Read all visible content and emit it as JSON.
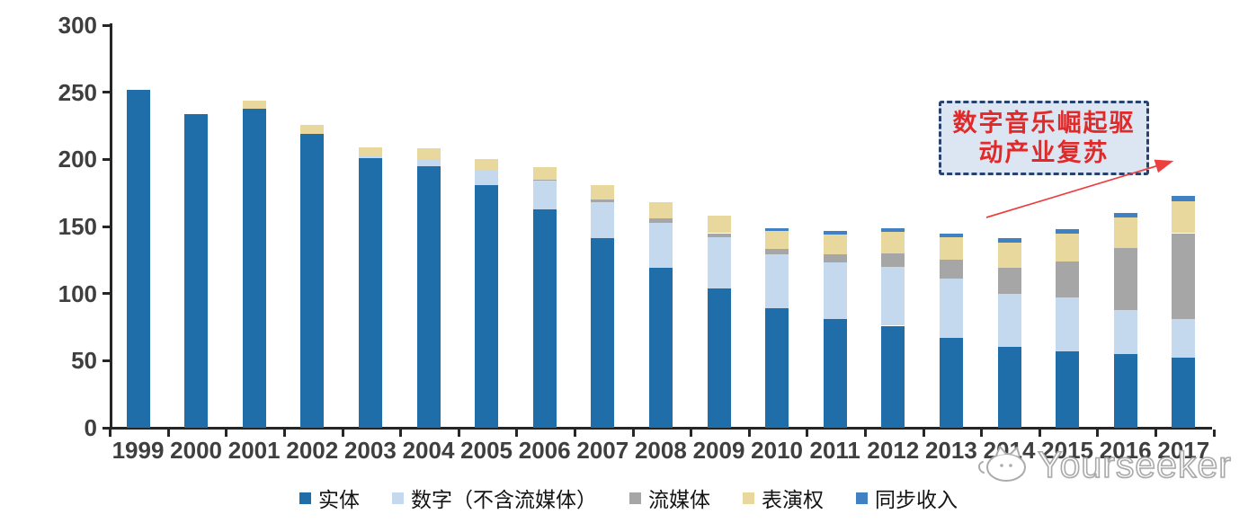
{
  "chart_data": {
    "type": "bar",
    "stacked": true,
    "title": "",
    "xlabel": "",
    "ylabel": "",
    "ylim": [
      0,
      300
    ],
    "y_ticks": [
      0,
      50,
      100,
      150,
      200,
      250,
      300
    ],
    "grid": false,
    "legend_position": "bottom",
    "categories": [
      "1999",
      "2000",
      "2001",
      "2002",
      "2003",
      "2004",
      "2005",
      "2006",
      "2007",
      "2008",
      "2009",
      "2010",
      "2011",
      "2012",
      "2013",
      "2014",
      "2015",
      "2016",
      "2017"
    ],
    "series": [
      {
        "key": "physical",
        "name": "实体",
        "color": "#1f6da9",
        "values": [
          252,
          234,
          238,
          219,
          201,
          195,
          181,
          163,
          141,
          119,
          104,
          89,
          81,
          76,
          67,
          60,
          57,
          55,
          52
        ]
      },
      {
        "key": "digital-excl-streaming",
        "name": "数字（不含流媒体）",
        "color": "#c4d9ee",
        "values": [
          0,
          0,
          0,
          0,
          1,
          5,
          11,
          21,
          27,
          34,
          38,
          40,
          42,
          44,
          44,
          40,
          40,
          33,
          29
        ]
      },
      {
        "key": "streaming",
        "name": "流媒体",
        "color": "#a6a6a6",
        "values": [
          0,
          0,
          0,
          0,
          0,
          0,
          0,
          1,
          2,
          3,
          3,
          4,
          6,
          10,
          14,
          19,
          27,
          46,
          64
        ]
      },
      {
        "key": "performance-rights",
        "name": "表演权",
        "color": "#e9d89e",
        "values": [
          0,
          0,
          6,
          7,
          7,
          8,
          8,
          9,
          11,
          12,
          13,
          14,
          15,
          16,
          17,
          19,
          21,
          23,
          24
        ]
      },
      {
        "key": "sync-revenue",
        "name": "同步收入",
        "color": "#3f81c2",
        "values": [
          0,
          0,
          0,
          0,
          0,
          0,
          0,
          0,
          0,
          0,
          0,
          2,
          3,
          3,
          3,
          3,
          3,
          3,
          4
        ]
      }
    ]
  },
  "annotation": {
    "line1": "数字音乐崛起驱",
    "line2": "动产业复苏",
    "box_bg": "#dce6f2",
    "border_color": "#27426e",
    "text_color": "#e02a2a",
    "arrow_color": "#ed3f3f"
  },
  "watermark": {
    "text": "Yourseeker"
  },
  "colors": {
    "axis": "#262626",
    "axis_label": "#3f3f3f",
    "background": "#ffffff"
  }
}
